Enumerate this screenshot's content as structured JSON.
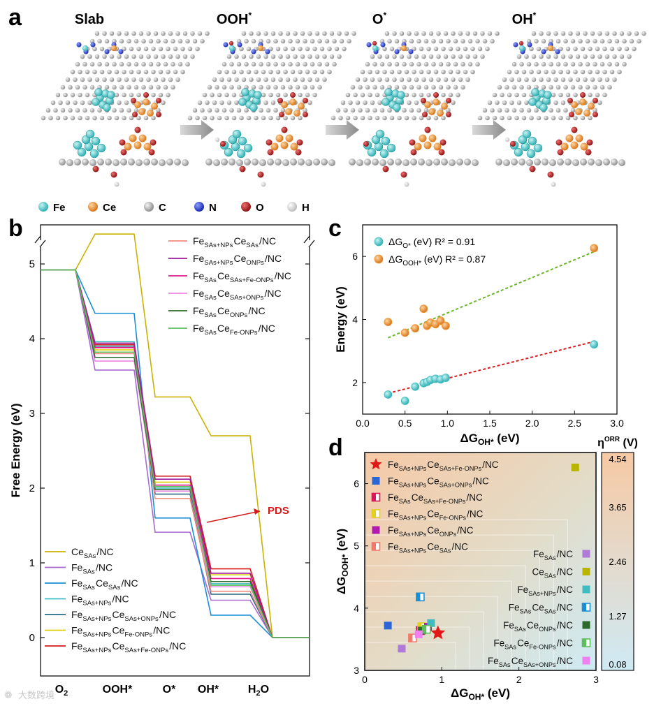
{
  "panel_letters": {
    "a": "a",
    "b": "b",
    "c": "c",
    "d": "d"
  },
  "panel_a": {
    "states": [
      "Slab",
      "OOH*",
      "O*",
      "OH*"
    ],
    "legend": [
      {
        "symbol": "Fe",
        "color": "#5fd3d3"
      },
      {
        "symbol": "Ce",
        "color": "#f0922b"
      },
      {
        "symbol": "C",
        "color": "#a8a8a8"
      },
      {
        "symbol": "N",
        "color": "#2a3fc9"
      },
      {
        "symbol": "O",
        "color": "#b51e1e"
      },
      {
        "symbol": "H",
        "color": "#eeeeee"
      }
    ]
  },
  "chart_data": [
    {
      "id": "b",
      "type": "line",
      "title": "",
      "xlabel": "",
      "ylabel": "Free Energy (eV)",
      "categories": [
        "O2",
        "OOH*",
        "O*",
        "OH*",
        "H2O"
      ],
      "ylim": [
        -0.3,
        5.5
      ],
      "yticks": [
        0,
        1,
        2,
        3,
        4,
        5
      ],
      "annotation": "PDS",
      "series": [
        {
          "name": "Ce_SAs/NC",
          "main": "Ce",
          "sub": "SAs",
          "rest": "/NC",
          "color": "#c9b200",
          "values": [
            4.92,
            5.4,
            3.22,
            2.7,
            0
          ]
        },
        {
          "name": "Fe_SAs/NC",
          "color": "#a86ad0",
          "values": [
            4.92,
            3.58,
            1.41,
            0.5,
            0
          ]
        },
        {
          "name": "Fe_SAs Ce_SAs/NC",
          "color": "#1a8fd6",
          "values": [
            4.92,
            4.34,
            1.6,
            0.3,
            0
          ]
        },
        {
          "name": "Fe_SAs+NPs/NC",
          "color": "#3fbcc0",
          "values": [
            4.92,
            3.96,
            2.0,
            0.72,
            0
          ]
        },
        {
          "name": "Fe_SAs+NPs Ce_SAs+ONPs/NC",
          "color": "#2c6a86",
          "values": [
            4.92,
            3.9,
            1.92,
            0.58,
            0
          ]
        },
        {
          "name": "Fe_SAs+NPs Ce_Fe-ONPs/NC",
          "color": "#ddd000",
          "values": [
            4.92,
            3.85,
            2.08,
            0.84,
            0
          ]
        },
        {
          "name": "Fe_SAs+NPs Ce_SAs+Fe-ONPs/NC",
          "color": "#d61a1a",
          "values": [
            4.92,
            3.92,
            2.16,
            0.92,
            0
          ]
        },
        {
          "name": "Fe_SAs+NPs Ce_SAs/NC",
          "color": "#f08a7c",
          "values": [
            4.92,
            3.8,
            1.86,
            0.62,
            0
          ]
        },
        {
          "name": "Fe_SAs+NPs Ce_ONPs/NC",
          "color": "#a01a9a",
          "values": [
            4.92,
            3.94,
            2.12,
            0.86,
            0
          ]
        },
        {
          "name": "Fe_SAs Ce_SAs+Fe-ONPs/NC",
          "color": "#e0188a",
          "values": [
            4.92,
            3.88,
            2.04,
            0.79,
            0
          ]
        },
        {
          "name": "Fe_SAs Ce_SAs+ONPs/NC",
          "color": "#ec86e6",
          "values": [
            4.92,
            3.7,
            1.96,
            0.68,
            0
          ]
        },
        {
          "name": "Fe_SAs Ce_ONPs/NC",
          "color": "#2d6a2d",
          "values": [
            4.92,
            3.75,
            1.98,
            0.75,
            0
          ]
        },
        {
          "name": "Fe_SAs Ce_Fe-ONPs/NC",
          "color": "#5cbe5c",
          "values": [
            4.92,
            3.82,
            2.02,
            0.7,
            0
          ]
        }
      ]
    },
    {
      "id": "c",
      "type": "scatter",
      "title": "",
      "xlabel": "ΔG_OH* (eV)",
      "ylabel": "Energy (eV)",
      "xlim": [
        0.0,
        3.0
      ],
      "ylim": [
        1.0,
        7.0
      ],
      "xticks": [
        0.0,
        0.5,
        1.0,
        1.5,
        2.0,
        2.5,
        3.0
      ],
      "yticks": [
        2,
        4,
        6
      ],
      "series": [
        {
          "name": "ΔG_O* (eV)",
          "r2": "R² = 0.91",
          "color": "#3fbcc0",
          "x": [
            0.3,
            0.5,
            0.62,
            0.72,
            0.76,
            0.8,
            0.86,
            0.92,
            0.98,
            2.73
          ],
          "y": [
            1.62,
            1.42,
            1.87,
            1.98,
            2.02,
            2.08,
            2.12,
            2.1,
            2.15,
            3.21
          ],
          "fit": [
            [
              0.3,
              1.66
            ],
            [
              2.73,
              3.3
            ]
          ],
          "fit_color": "#d62020"
        },
        {
          "name": "ΔG_OOH* (eV)",
          "r2": "R² = 0.87",
          "color": "#f0922b",
          "x": [
            0.3,
            0.5,
            0.62,
            0.72,
            0.76,
            0.8,
            0.86,
            0.92,
            0.98,
            2.73
          ],
          "y": [
            3.92,
            3.58,
            3.72,
            4.34,
            3.8,
            3.9,
            3.85,
            3.96,
            3.8,
            6.26
          ],
          "fit": [
            [
              0.3,
              3.42
            ],
            [
              2.73,
              6.15
            ]
          ],
          "fit_color": "#6ab52a"
        }
      ]
    },
    {
      "id": "d",
      "type": "heatmap",
      "title": "",
      "xlabel": "ΔG_OH* (eV)",
      "ylabel": "ΔG_OOH* (eV)",
      "xlim": [
        0,
        3
      ],
      "ylim": [
        3,
        6.5
      ],
      "xticks": [
        0,
        1,
        2,
        3
      ],
      "yticks": [
        3,
        4,
        5,
        6
      ],
      "colorbar": {
        "label": "η^ORR (V)",
        "ticks": [
          4.54,
          3.65,
          2.46,
          1.27,
          0.08
        ]
      },
      "points": [
        {
          "label": "Fe_SAs+NPs Ce_SAs+Fe-ONPs/NC",
          "x": 0.95,
          "y": 3.6,
          "color": "#e01818",
          "marker": "star"
        },
        {
          "label": "Fe_SAs+NPs Ce_SAs+ONPs/NC",
          "x": 0.3,
          "y": 3.72,
          "color": "#2b66d6",
          "marker": "square"
        },
        {
          "label": "Fe_SAs Ce_SAs+Fe-ONPs/NC",
          "x": 0.72,
          "y": 3.64,
          "color": "#d8185e",
          "marker": "half"
        },
        {
          "label": "Fe_SAs+NPs Ce_Fe-ONPs/NC",
          "x": 0.74,
          "y": 3.7,
          "color": "#e4d020",
          "marker": "half"
        },
        {
          "label": "Fe_SAs+NPs Ce_ONPs/NC",
          "x": 0.82,
          "y": 3.7,
          "color": "#b01ab0",
          "marker": "square"
        },
        {
          "label": "Fe_SAs+NPs Ce_SAs/NC",
          "x": 0.62,
          "y": 3.52,
          "color": "#f07a6c",
          "marker": "half"
        },
        {
          "label": "Fe_SAs/NC",
          "x": 0.48,
          "y": 3.35,
          "color": "#b07ad8",
          "marker": "square"
        },
        {
          "label": "Ce_SAs/NC",
          "x": 2.73,
          "y": 6.26,
          "color": "#b8b400",
          "marker": "square"
        },
        {
          "label": "Fe_SAs+NPs/NC",
          "x": 0.86,
          "y": 3.76,
          "color": "#3fbcc0",
          "marker": "square"
        },
        {
          "label": "Fe_SAs Ce_SAs/NC",
          "x": 0.72,
          "y": 4.18,
          "color": "#1a8fd6",
          "marker": "half"
        },
        {
          "label": "Fe_SAs Ce_ONPs/NC",
          "x": 0.74,
          "y": 3.64,
          "color": "#2d6a2d",
          "marker": "square"
        },
        {
          "label": "Fe_SAs Ce_Fe-ONPs/NC",
          "x": 0.8,
          "y": 3.66,
          "color": "#5cbe5c",
          "marker": "half"
        },
        {
          "label": "Fe_SAs Ce_SAs+ONPs/NC",
          "x": 0.7,
          "y": 3.58,
          "color": "#f080f0",
          "marker": "square"
        }
      ]
    }
  ],
  "watermark": "大数跨境"
}
